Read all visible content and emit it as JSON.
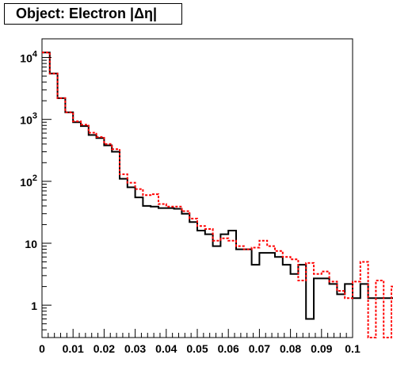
{
  "title": "Object: Electron |Δη|",
  "chart_data": {
    "type": "histogram",
    "title": "Object: Electron |Δη|",
    "xlabel": "",
    "ylabel": "",
    "xlim": [
      0,
      0.1
    ],
    "ylim": [
      0.3,
      20000
    ],
    "y_scale": "log",
    "grid": false,
    "legend": "none",
    "bin_width": 0.0025,
    "x_ticks": [
      "0",
      "0.01",
      "0.02",
      "0.03",
      "0.04",
      "0.05",
      "0.06",
      "0.07",
      "0.08",
      "0.09",
      "0.1"
    ],
    "y_tick_labels": [
      {
        "value": 1,
        "base": "1",
        "exp": ""
      },
      {
        "value": 10,
        "base": "10",
        "exp": ""
      },
      {
        "value": 100,
        "base": "10",
        "exp": "2"
      },
      {
        "value": 1000,
        "base": "10",
        "exp": "3"
      },
      {
        "value": 10000,
        "base": "10",
        "exp": "4"
      }
    ],
    "series": [
      {
        "color": "#000000",
        "style": "solid",
        "values": [
          12000,
          5500,
          2200,
          1300,
          900,
          780,
          560,
          500,
          380,
          300,
          110,
          80,
          55,
          40,
          39,
          37,
          37,
          36,
          30,
          22,
          16,
          14,
          9,
          14,
          16,
          8,
          8,
          4.5,
          7,
          7,
          6,
          4.5,
          3.2,
          4.5,
          0.6,
          2.7,
          2.7,
          2.2,
          1.5,
          2.2,
          1.3,
          2.2,
          1.3,
          1.3,
          1.3,
          1.3,
          1.3,
          1.3,
          1.3,
          1.3
        ]
      },
      {
        "color": "#ff0000",
        "style": "dashed",
        "values": [
          12000,
          5500,
          2200,
          1300,
          930,
          820,
          610,
          520,
          400,
          330,
          130,
          95,
          75,
          60,
          62,
          43,
          39,
          39,
          33,
          25,
          19,
          17,
          11,
          12,
          11,
          9,
          8,
          8.5,
          11,
          9,
          7.5,
          6,
          5.5,
          2.5,
          4.8,
          3.2,
          3.5,
          2.4,
          1.7,
          1.3,
          2.4,
          5,
          0.3,
          2.5,
          0.3,
          2,
          2,
          1.3,
          0.3,
          5
        ]
      }
    ]
  }
}
